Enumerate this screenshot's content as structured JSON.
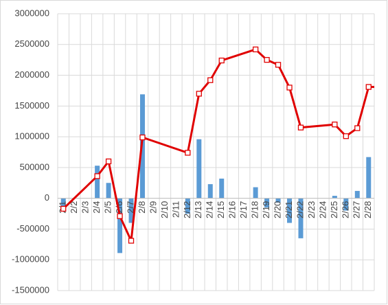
{
  "chart_data": {
    "type": "bar-line",
    "categories": [
      "2/1",
      "2/2",
      "2/3",
      "2/4",
      "2/5",
      "2/6",
      "2/7",
      "2/8",
      "2/9",
      "2/10",
      "2/11",
      "2/12",
      "2/13",
      "2/14",
      "2/15",
      "2/16",
      "2/17",
      "2/18",
      "2/19",
      "2/20",
      "2/21",
      "2/22",
      "2/23",
      "2/24",
      "2/25",
      "2/26",
      "2/27",
      "2/28"
    ],
    "series": [
      {
        "type": "bar",
        "color": "#5b9bd5",
        "values": [
          -150000,
          null,
          null,
          530000,
          250000,
          -890000,
          -400000,
          1690000,
          null,
          null,
          null,
          -250000,
          960000,
          230000,
          320000,
          null,
          null,
          180000,
          -150000,
          -70000,
          -400000,
          -650000,
          null,
          null,
          40000,
          -200000,
          120000,
          670000
        ]
      },
      {
        "type": "line",
        "color": "#e00000",
        "values": [
          -170000,
          null,
          null,
          360000,
          600000,
          -290000,
          -690000,
          990000,
          null,
          null,
          null,
          740000,
          1700000,
          1920000,
          2240000,
          null,
          null,
          2420000,
          2250000,
          2170000,
          1800000,
          1150000,
          null,
          null,
          1200000,
          1010000,
          1140000,
          1810000
        ]
      }
    ],
    "ylim": [
      -1500000,
      3000000
    ],
    "yticks": [
      -1500000,
      -1000000,
      -500000,
      0,
      500000,
      1000000,
      1500000,
      2000000,
      2500000,
      3000000
    ],
    "grid": true
  }
}
